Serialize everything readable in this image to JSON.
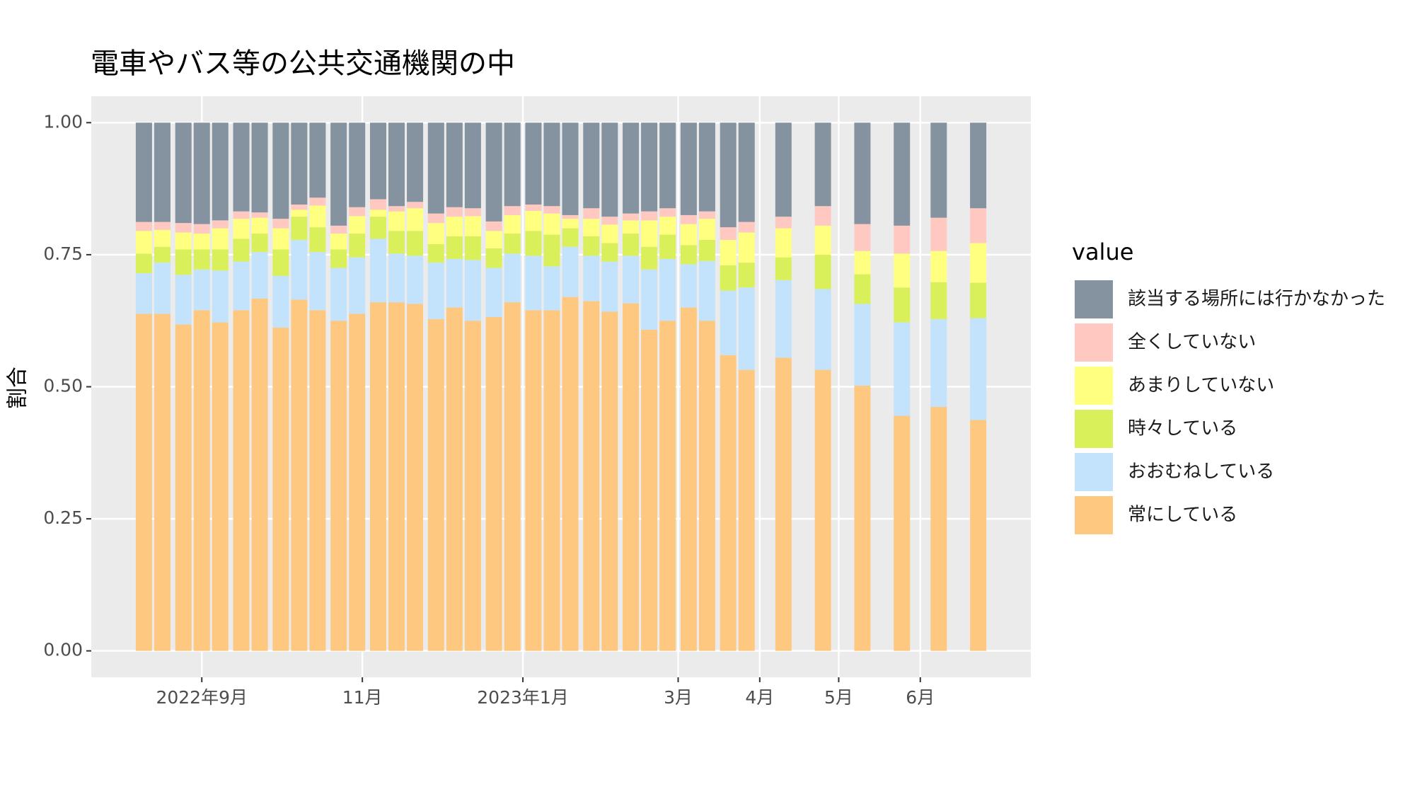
{
  "chart_data": {
    "type": "stacked-bar",
    "title": "電車やバス等の公共交通機関の中",
    "y_label": "割合",
    "legend_title": "value",
    "x": [
      "2022-08-10",
      "2022-08-17",
      "2022-08-25",
      "2022-09-01",
      "2022-09-08",
      "2022-09-16",
      "2022-09-23",
      "2022-10-01",
      "2022-10-08",
      "2022-10-15",
      "2022-10-23",
      "2022-10-30",
      "2022-11-07",
      "2022-11-14",
      "2022-11-21",
      "2022-11-29",
      "2022-12-06",
      "2022-12-13",
      "2022-12-21",
      "2022-12-28",
      "2023-01-05",
      "2023-01-12",
      "2023-01-19",
      "2023-01-27",
      "2023-02-03",
      "2023-02-11",
      "2023-02-18",
      "2023-02-25",
      "2023-03-05",
      "2023-03-12",
      "2023-03-20",
      "2023-03-27",
      "2023-04-10",
      "2023-04-25",
      "2023-05-10",
      "2023-05-25",
      "2023-06-08",
      "2023-06-23"
    ],
    "series": [
      {
        "name": "該当する場所には行かなかった",
        "color": "#8592a0",
        "values": [
          0.188,
          0.188,
          0.19,
          0.192,
          0.185,
          0.168,
          0.17,
          0.182,
          0.155,
          0.142,
          0.195,
          0.16,
          0.145,
          0.158,
          0.15,
          0.172,
          0.16,
          0.162,
          0.187,
          0.158,
          0.155,
          0.158,
          0.175,
          0.162,
          0.178,
          0.172,
          0.168,
          0.162,
          0.175,
          0.168,
          0.198,
          0.188,
          0.178,
          0.158,
          0.192,
          0.195,
          0.18,
          0.162
        ]
      },
      {
        "name": "全くしていない",
        "color": "#ffc9c2",
        "values": [
          0.017,
          0.015,
          0.018,
          0.018,
          0.015,
          0.014,
          0.01,
          0.018,
          0.01,
          0.015,
          0.015,
          0.017,
          0.02,
          0.01,
          0.012,
          0.018,
          0.018,
          0.015,
          0.018,
          0.017,
          0.012,
          0.014,
          0.007,
          0.02,
          0.015,
          0.013,
          0.017,
          0.016,
          0.017,
          0.014,
          0.024,
          0.02,
          0.022,
          0.037,
          0.051,
          0.053,
          0.063,
          0.066
        ]
      },
      {
        "name": "あまりしていない",
        "color": "#ffff80",
        "values": [
          0.043,
          0.032,
          0.032,
          0.03,
          0.04,
          0.038,
          0.03,
          0.04,
          0.013,
          0.041,
          0.03,
          0.033,
          0.013,
          0.037,
          0.043,
          0.04,
          0.037,
          0.038,
          0.033,
          0.035,
          0.038,
          0.04,
          0.018,
          0.033,
          0.035,
          0.025,
          0.05,
          0.034,
          0.04,
          0.04,
          0.048,
          0.057,
          0.055,
          0.055,
          0.044,
          0.064,
          0.059,
          0.075
        ]
      },
      {
        "name": "時々している",
        "color": "#d9f05a",
        "values": [
          0.037,
          0.03,
          0.048,
          0.038,
          0.04,
          0.043,
          0.035,
          0.05,
          0.044,
          0.047,
          0.035,
          0.045,
          0.042,
          0.043,
          0.047,
          0.035,
          0.043,
          0.045,
          0.037,
          0.038,
          0.047,
          0.06,
          0.035,
          0.037,
          0.035,
          0.042,
          0.043,
          0.046,
          0.036,
          0.04,
          0.048,
          0.047,
          0.043,
          0.065,
          0.056,
          0.066,
          0.07,
          0.067
        ]
      },
      {
        "name": "おおむねしている",
        "color": "#c2e3fb",
        "values": [
          0.077,
          0.097,
          0.094,
          0.077,
          0.098,
          0.092,
          0.088,
          0.098,
          0.113,
          0.11,
          0.1,
          0.107,
          0.12,
          0.092,
          0.091,
          0.107,
          0.092,
          0.115,
          0.093,
          0.092,
          0.103,
          0.083,
          0.095,
          0.086,
          0.095,
          0.09,
          0.114,
          0.117,
          0.082,
          0.113,
          0.122,
          0.156,
          0.147,
          0.153,
          0.155,
          0.177,
          0.166,
          0.193
        ]
      },
      {
        "name": "常にしている",
        "color": "#ffc880",
        "values": [
          0.638,
          0.638,
          0.618,
          0.645,
          0.622,
          0.645,
          0.667,
          0.612,
          0.665,
          0.645,
          0.625,
          0.638,
          0.66,
          0.66,
          0.657,
          0.628,
          0.65,
          0.625,
          0.632,
          0.66,
          0.645,
          0.645,
          0.67,
          0.662,
          0.642,
          0.658,
          0.608,
          0.625,
          0.65,
          0.625,
          0.56,
          0.532,
          0.555,
          0.532,
          0.502,
          0.445,
          0.462,
          0.437
        ]
      }
    ],
    "xlim": [
      "2022-07-21",
      "2023-07-13"
    ],
    "xticks": [
      {
        "value": "2022-09-01",
        "label": "2022年9月"
      },
      {
        "value": "2022-11-01",
        "label": "11月"
      },
      {
        "value": "2023-01-01",
        "label": "2023年1月"
      },
      {
        "value": "2023-03-01",
        "label": "3月"
      },
      {
        "value": "2023-04-01",
        "label": "4月"
      },
      {
        "value": "2023-05-01",
        "label": "5月"
      },
      {
        "value": "2023-06-01",
        "label": "6月"
      }
    ],
    "ylim": [
      -0.05,
      1.05
    ],
    "yticks": [
      {
        "value": 0,
        "label": "0.00"
      },
      {
        "value": 0.25,
        "label": "0.25"
      },
      {
        "value": 0.5,
        "label": "0.50"
      },
      {
        "value": 0.75,
        "label": "0.75"
      },
      {
        "value": 1,
        "label": "1.00"
      }
    ],
    "grid": true
  }
}
